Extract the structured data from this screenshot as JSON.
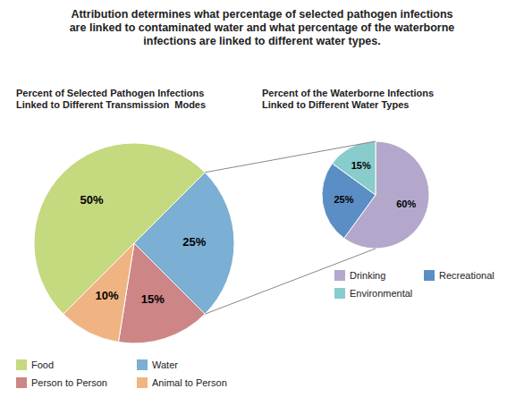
{
  "chart_data": [
    {
      "type": "pie",
      "title": "Attribution determines what percentage of selected pathogen infections\nare linked to contaminated water and what percentage of the waterborne\ninfections are linked to different water types.",
      "subtitle": "Percent of Selected Pathogen Infections\nLinked to Different Transmission  Modes",
      "categories": [
        "Food",
        "Water",
        "Person to Person",
        "Animal to Person"
      ],
      "values": [
        50,
        25,
        15,
        10
      ],
      "value_labels": [
        "50%",
        "25%",
        "15%",
        "10%"
      ],
      "colors": [
        "#c5d97f",
        "#7bafd4",
        "#cd8585",
        "#f0b482"
      ],
      "data_labels": true,
      "legend": "lower left"
    },
    {
      "type": "pie",
      "subtitle": "Percent of the Waterborne Infections\nLinked to Different Water Types",
      "categories": [
        "Drinking",
        "Recreational",
        "Environmental"
      ],
      "values": [
        60,
        25,
        15
      ],
      "value_labels": [
        "60%",
        "25%",
        "15%"
      ],
      "colors": [
        "#b3a8cc",
        "#5b8ec4",
        "#88cccc"
      ],
      "data_labels": true,
      "legend": "lower right"
    }
  ]
}
